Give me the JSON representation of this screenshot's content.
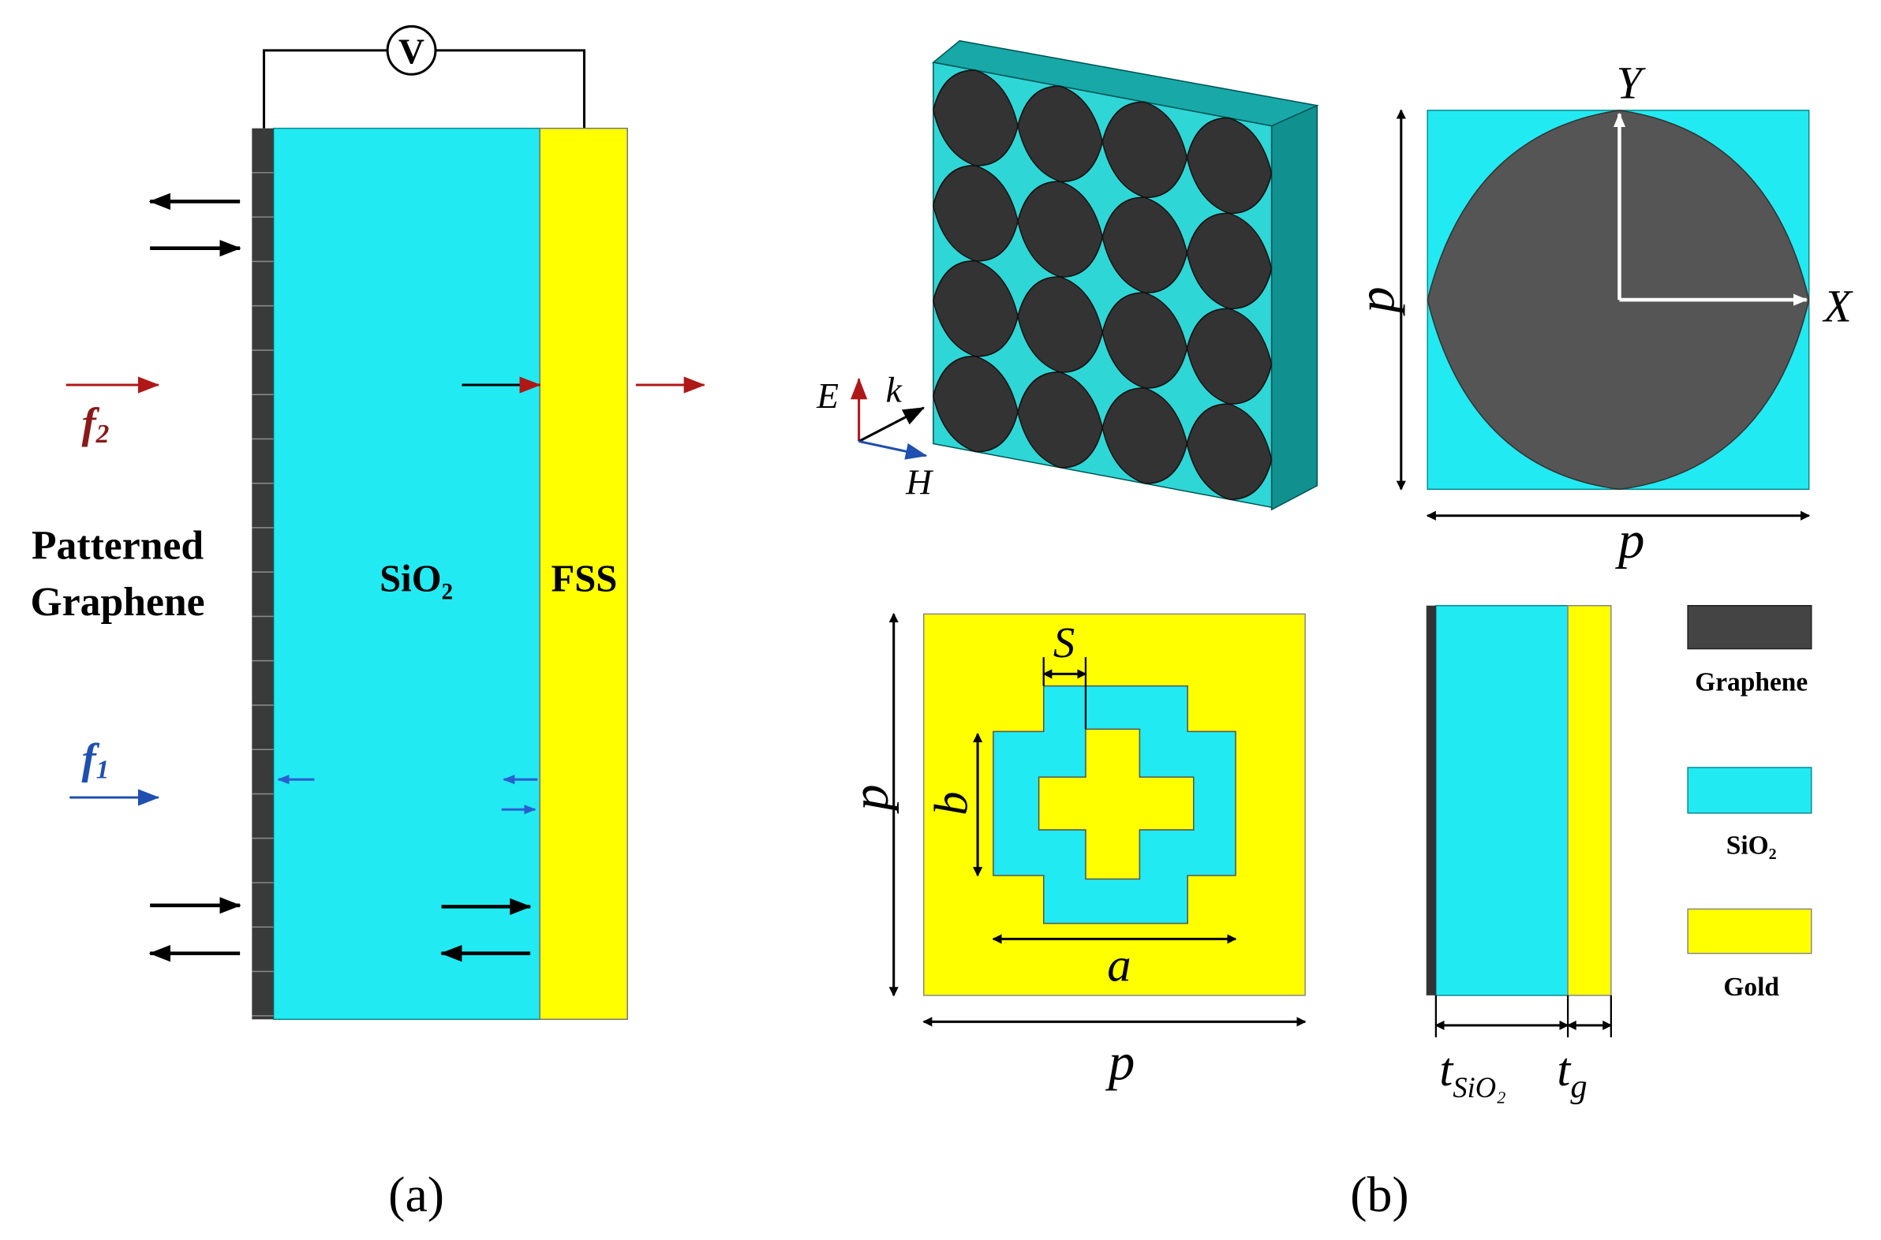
{
  "panel_a": {
    "voltmeter": "V",
    "graphene_label": [
      "Patterned",
      "Graphene"
    ],
    "sio2_label": "SiO₂",
    "fss_label": "FSS",
    "f2": {
      "symbol": "f",
      "sub": "2"
    },
    "f1": {
      "symbol": "f",
      "sub": "1"
    },
    "caption": "(a)"
  },
  "panel_b": {
    "axes_3d": {
      "e": "E",
      "k": "k",
      "h": "H"
    },
    "unit_cell": {
      "y": "Y",
      "x": "X",
      "p_vertical": "p",
      "p_horizontal": "p"
    },
    "fss_cell": {
      "s": "S",
      "b": "b",
      "a": "a",
      "p_vertical": "p",
      "p_horizontal": "p"
    },
    "side_view": {
      "t_sio2": {
        "symbol": "t",
        "sub": "SiO₂"
      },
      "t_g": {
        "symbol": "t",
        "sub": "g"
      }
    },
    "legend": [
      "Graphene",
      "SiO₂",
      "Gold"
    ],
    "caption": "(b)"
  }
}
